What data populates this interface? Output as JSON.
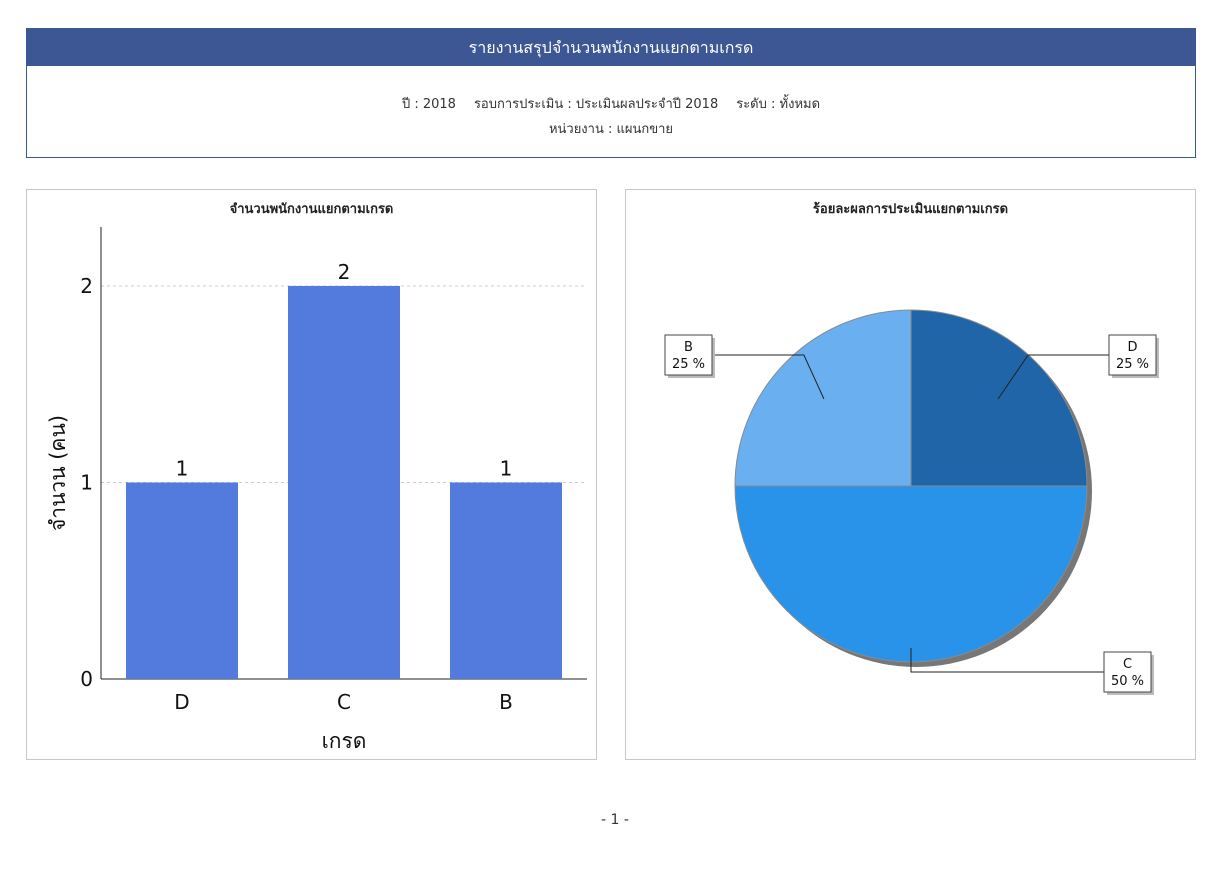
{
  "report": {
    "title": "รายงานสรุปจำนวนพนักงานแยกตามเกรด",
    "year_label": "ปี : 2018",
    "round_label": "รอบการประเมิน : ประเมินผลประจำปี 2018",
    "level_label": "ระดับ : ทั้งหมด",
    "unit_label": "หน่วยงาน : แผนกขาย"
  },
  "footer": {
    "page": "- 1 -"
  },
  "colors": {
    "header_bg": "#3d5794",
    "bar": "#527bdd",
    "pie_D": "#1f65a8",
    "pie_B": "#6aaff0",
    "pie_C": "#2893e8"
  },
  "chart_data": [
    {
      "type": "bar",
      "title": "จำนวนพนักงานแยกตามเกรด",
      "xlabel": "เกรด",
      "ylabel": "จำนวน (คน)",
      "categories": [
        "D",
        "C",
        "B"
      ],
      "values": [
        1,
        2,
        1
      ],
      "ylim": [
        0,
        2.3
      ],
      "yticks": [
        "0",
        "1",
        "2"
      ],
      "grid": true
    },
    {
      "type": "pie",
      "title": "ร้อยละผลการประเมินแยกตามเกรด",
      "slices": [
        {
          "label": "D",
          "value": 25,
          "text": "25 %"
        },
        {
          "label": "C",
          "value": 50,
          "text": "50 %"
        },
        {
          "label": "B",
          "value": 25,
          "text": "25 %"
        }
      ]
    }
  ]
}
